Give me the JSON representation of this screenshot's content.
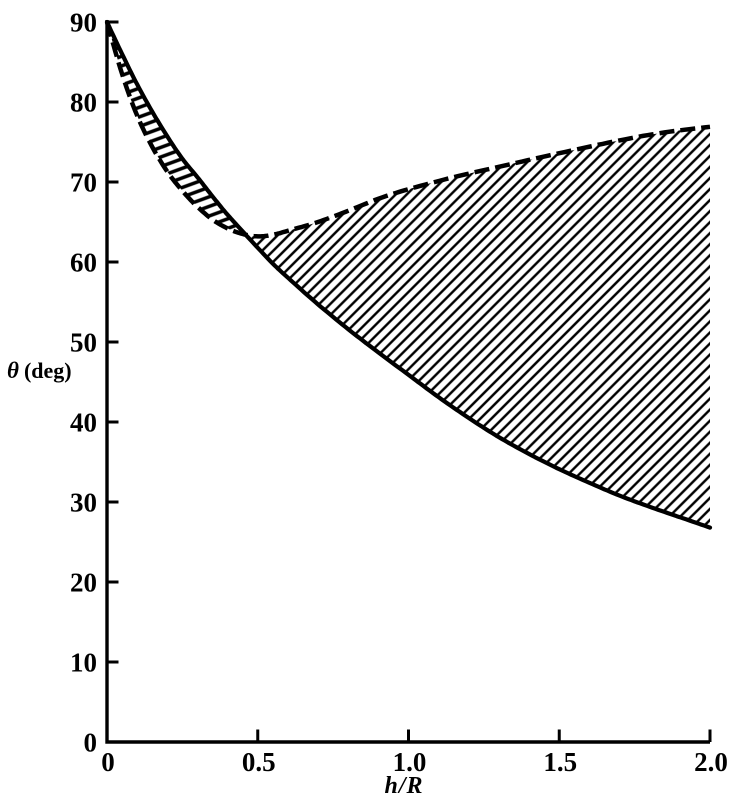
{
  "colors": {
    "ink": "#000000",
    "background": "#ffffff"
  },
  "chart_data": {
    "type": "line",
    "title": "",
    "xlabel": "h/R",
    "ylabel": "θ (deg)",
    "ylabel_symbol": "θ",
    "ylabel_unit": "(deg)",
    "xlim": [
      0,
      2
    ],
    "ylim": [
      0,
      90
    ],
    "x_ticks": [
      0,
      0.5,
      1.0,
      1.5,
      2.0
    ],
    "x_tick_labels": [
      "0",
      "0.5",
      "1.0",
      "1.5",
      "2.0"
    ],
    "y_ticks": [
      0,
      10,
      20,
      30,
      40,
      50,
      60,
      70,
      80,
      90
    ],
    "y_tick_labels": [
      "0",
      "10",
      "20",
      "30",
      "40",
      "50",
      "60",
      "70",
      "80",
      "90"
    ],
    "grid": false,
    "legend": null,
    "series": [
      {
        "name": "theta-solid-curve",
        "style": "solid",
        "points": [
          [
            0,
            90
          ],
          [
            0.05,
            86
          ],
          [
            0.1,
            82.2
          ],
          [
            0.15,
            78.8
          ],
          [
            0.2,
            75.7
          ],
          [
            0.25,
            72.9
          ],
          [
            0.3,
            70.6
          ],
          [
            0.35,
            68.2
          ],
          [
            0.4,
            65.9
          ],
          [
            0.47,
            63.0
          ],
          [
            0.55,
            59.8
          ],
          [
            0.61,
            57.7
          ],
          [
            0.7,
            54.7
          ],
          [
            0.8,
            51.6
          ],
          [
            0.9,
            48.7
          ],
          [
            1.0,
            45.9
          ],
          [
            1.1,
            43.1
          ],
          [
            1.2,
            40.5
          ],
          [
            1.3,
            38.1
          ],
          [
            1.4,
            36.0
          ],
          [
            1.5,
            34.1
          ],
          [
            1.6,
            32.4
          ],
          [
            1.7,
            30.8
          ],
          [
            1.8,
            29.4
          ],
          [
            1.9,
            28.1
          ],
          [
            2.0,
            26.8
          ]
        ]
      },
      {
        "name": "theta-dashed-curve",
        "style": "dashed",
        "points": [
          [
            0,
            90
          ],
          [
            0.05,
            83.5
          ],
          [
            0.1,
            78.3
          ],
          [
            0.15,
            74.4
          ],
          [
            0.2,
            71.3
          ],
          [
            0.25,
            68.9
          ],
          [
            0.3,
            66.9
          ],
          [
            0.35,
            65.3
          ],
          [
            0.4,
            64.2
          ],
          [
            0.45,
            63.5
          ],
          [
            0.5,
            63.2
          ],
          [
            0.55,
            63.4
          ],
          [
            0.6,
            63.9
          ],
          [
            0.7,
            65.0
          ],
          [
            0.8,
            66.4
          ],
          [
            0.9,
            67.9
          ],
          [
            1.0,
            69.1
          ],
          [
            1.15,
            70.6
          ],
          [
            1.3,
            71.9
          ],
          [
            1.5,
            73.6
          ],
          [
            1.7,
            75.2
          ],
          [
            1.85,
            76.2
          ],
          [
            2.0,
            76.9
          ]
        ]
      }
    ],
    "hatched_regions": {
      "description": "area enclosed between the solid and dashed curves is diagonally hatched",
      "crossing_point": [
        0.46,
        63.3
      ],
      "dashed_curve_minimum": [
        0.5,
        63.2
      ]
    }
  }
}
